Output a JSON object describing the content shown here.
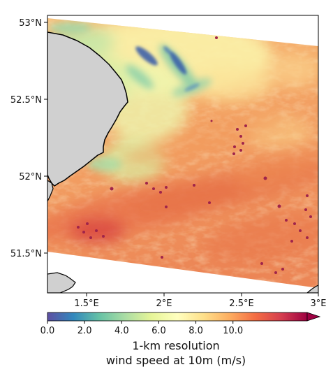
{
  "map": {
    "latitude_labels": [
      "53°N",
      "52.5°N",
      "52°N",
      "51.5°N"
    ],
    "longitude_labels": [
      "1.5°E",
      "2°E",
      "2.5°E",
      "3°E"
    ],
    "extent": {
      "lon": [
        1.25,
        3.0
      ],
      "lat": [
        51.25,
        53.05
      ]
    },
    "land_color": "#d0d0d0",
    "coastline_color": "#000000",
    "field": "wind speed at 10m over the southern North Sea",
    "field_colors": {
      "low": "#3b4fa5",
      "mid_low": "#7bc8a4",
      "mid": "#fbf8b8",
      "mid_high": "#f5a15a",
      "high": "#e9754a",
      "very_high": "#9e0142"
    }
  },
  "colorbar": {
    "ticks": [
      "0.0",
      "2.0",
      "4.0",
      "6.0",
      "8.0",
      "10.0"
    ],
    "range": [
      0,
      14
    ],
    "extend": "max",
    "title_line1": "1-km resolution",
    "title_line2": "wind speed at 10m (m/s)",
    "colormap": "Spectral_r"
  }
}
